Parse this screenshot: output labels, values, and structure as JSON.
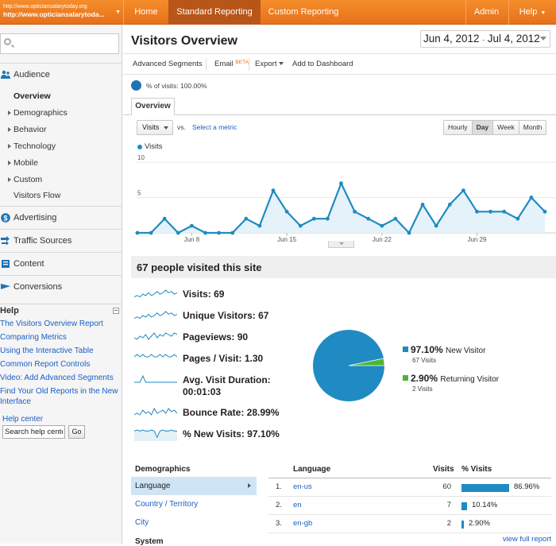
{
  "account": {
    "url_line1": "http://www.opticiansalarytoday.org",
    "url_line2": "http://www.opticiansalarytoda..."
  },
  "topnav": {
    "home": "Home",
    "standard_reporting": "Standard Reporting",
    "custom_reporting": "Custom Reporting",
    "admin": "Admin",
    "help": "Help"
  },
  "sidebar": {
    "search_placeholder": "",
    "audience": "Audience",
    "audience_items": [
      "Overview",
      "Demographics",
      "Behavior",
      "Technology",
      "Mobile",
      "Custom",
      "Visitors Flow"
    ],
    "advertising": "Advertising",
    "traffic_sources": "Traffic Sources",
    "content": "Content",
    "conversions": "Conversions",
    "help_title": "Help",
    "help_links": [
      "The Visitors Overview Report",
      "Comparing Metrics",
      "Using the Interactive Table",
      "Common Report Controls",
      "Video: Add Advanced Segments",
      "Find Your Old Reports in the New Interface"
    ],
    "help_center": "Help center",
    "help_center_value": "Search help center",
    "go": "Go"
  },
  "main": {
    "title": "Visitors Overview",
    "date_start": "Jun 4, 2012",
    "date_sep": "-",
    "date_end": "Jul 4, 2012",
    "toolbar": {
      "advanced_segments": "Advanced Segments",
      "email": "Email",
      "beta": "BETA",
      "export": "Export",
      "add_dashboard": "Add to Dashboard"
    },
    "segment_text": "% of visits: 100.00%",
    "tab_overview": "Overview",
    "metric": "Visits",
    "vs": "vs.",
    "select_metric": "Select a metric",
    "granularity": [
      "Hourly",
      "Day",
      "Week",
      "Month"
    ],
    "granularity_selected": "Day",
    "legend": "Visits",
    "people_title": "67 people visited this site",
    "metrics": [
      "Visits: 69",
      "Unique Visitors: 67",
      "Pageviews: 90",
      "Pages / Visit: 1.30",
      "Avg. Visit Duration: 00:01:03",
      "Bounce Rate: 28.99%",
      "% New Visits: 97.10%"
    ],
    "pie": {
      "new_pct": "97.10%",
      "new_label": "New Visitor",
      "new_visits": "67 Visits",
      "ret_pct": "2.90%",
      "ret_label": "Returning Visitor",
      "ret_visits": "2 Visits",
      "new_color": "#1f8bc2",
      "ret_color": "#50b432"
    },
    "demographics": {
      "title": "Demographics",
      "items": [
        "Language",
        "Country / Territory",
        "City"
      ],
      "system": "System"
    },
    "language_table": {
      "headers": {
        "language": "Language",
        "visits": "Visits",
        "pct_visits": "% Visits"
      },
      "rows": [
        {
          "n": "1.",
          "lang": "en-us",
          "visits": "60",
          "pct": "86.96%",
          "share": 0.8696
        },
        {
          "n": "2.",
          "lang": "en",
          "visits": "7",
          "pct": "10.14%",
          "share": 0.1014
        },
        {
          "n": "3.",
          "lang": "en-gb",
          "visits": "2",
          "pct": "2.90%",
          "share": 0.029
        }
      ],
      "view_full": "view full report"
    }
  },
  "chart_data": {
    "type": "area",
    "series": [
      {
        "name": "Visits",
        "values": [
          0,
          0,
          2,
          0,
          1,
          0,
          0,
          0,
          2,
          1,
          6,
          3,
          1,
          2,
          2,
          7,
          3,
          2,
          1,
          2,
          0,
          4,
          1,
          4,
          6,
          3,
          3,
          3,
          2,
          5,
          3
        ]
      }
    ],
    "x_labels": [
      "Jun 8",
      "Jun 15",
      "Jun 22",
      "Jun 29"
    ],
    "y_ticks": [
      5,
      10
    ],
    "ylim": [
      0,
      10
    ],
    "color": "#1f8bc2"
  }
}
